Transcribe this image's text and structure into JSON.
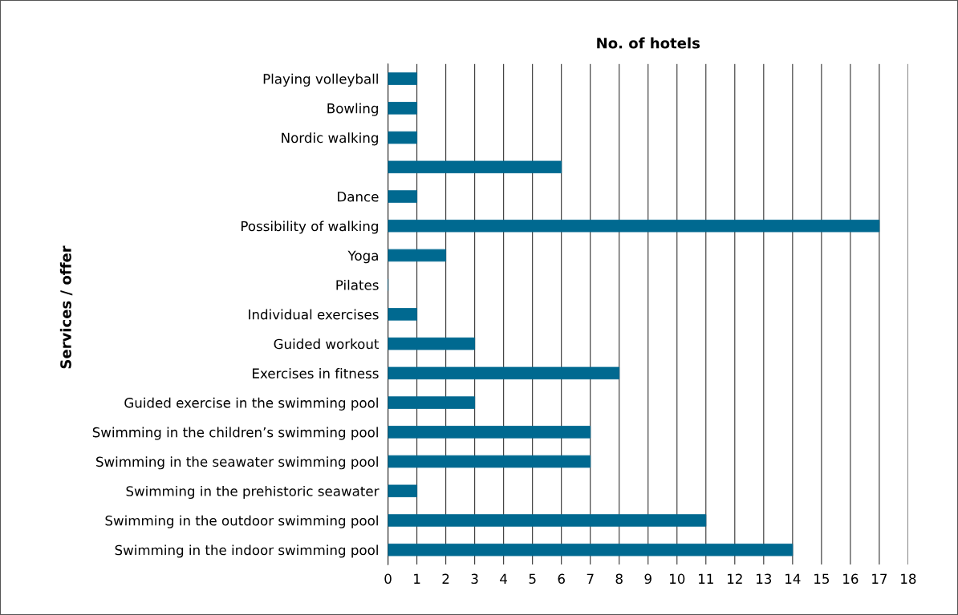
{
  "chart_data": {
    "type": "bar",
    "orientation": "horizontal",
    "xlabel": "No. of hotels",
    "ylabel": "Services / offer",
    "categories": [
      "Playing volleyball",
      "Bowling",
      "Nordic walking",
      null,
      "Dance",
      "Possibility of walking",
      "Yoga",
      "Pilates",
      "Individual exercises",
      "Guided workout",
      "Exercises in fitness",
      "Guided exercise in the swimming pool",
      "Swimming in the children’s swimming pool",
      "Swimming in the seawater swimming pool",
      "Swimming in the prehistoric seawater",
      "Swimming in the outdoor swimming pool",
      "Swimming in the indoor swimming pool"
    ],
    "values": [
      1,
      1,
      1,
      6,
      1,
      17,
      2,
      0,
      1,
      3,
      8,
      3,
      7,
      7,
      1,
      11,
      14
    ],
    "color": "#006990",
    "xlim": [
      0,
      18
    ],
    "xticks": [
      0,
      1,
      2,
      3,
      4,
      5,
      6,
      7,
      8,
      9,
      10,
      11,
      12,
      13,
      14,
      15,
      16,
      17,
      18
    ],
    "grid": "x",
    "legend": false
  }
}
